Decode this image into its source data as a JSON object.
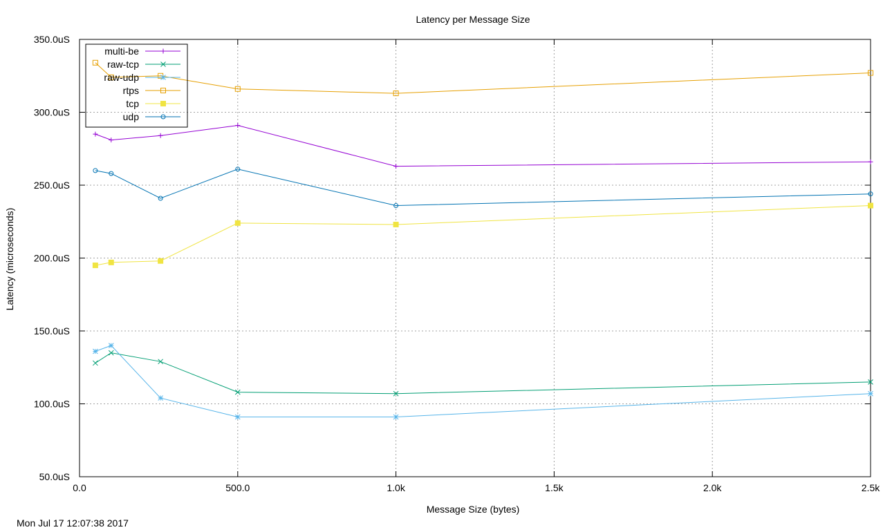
{
  "chart_data": {
    "type": "line",
    "title": "Latency per Message Size",
    "xlabel": "Message Size (bytes)",
    "ylabel": "Latency (microseconds)",
    "xlim": [
      0,
      2500
    ],
    "ylim": [
      50,
      350
    ],
    "grid": true,
    "legend_position": "top-left",
    "x_ticks": [
      {
        "value": 0,
        "label": "0.0"
      },
      {
        "value": 500,
        "label": "500.0"
      },
      {
        "value": 1000,
        "label": "1.0k"
      },
      {
        "value": 1500,
        "label": "1.5k"
      },
      {
        "value": 2000,
        "label": "2.0k"
      },
      {
        "value": 2500,
        "label": "2.5k"
      }
    ],
    "y_ticks": [
      {
        "value": 50,
        "label": "50.0uS"
      },
      {
        "value": 100,
        "label": "100.0uS"
      },
      {
        "value": 150,
        "label": "150.0uS"
      },
      {
        "value": 200,
        "label": "200.0uS"
      },
      {
        "value": 250,
        "label": "250.0uS"
      },
      {
        "value": 300,
        "label": "300.0uS"
      },
      {
        "value": 350,
        "label": "350.0uS"
      }
    ],
    "series": [
      {
        "name": "multi-be",
        "color": "#9400d3",
        "marker": "plus",
        "x": [
          50,
          100,
          256,
          500,
          1000,
          2500
        ],
        "y": [
          285,
          281,
          284,
          291,
          263,
          266
        ]
      },
      {
        "name": "raw-tcp",
        "color": "#009e73",
        "marker": "cross",
        "x": [
          50,
          100,
          256,
          500,
          1000,
          2500
        ],
        "y": [
          128,
          135,
          129,
          108,
          107,
          115
        ]
      },
      {
        "name": "raw-udp",
        "color": "#56b4e9",
        "marker": "star",
        "x": [
          50,
          100,
          256,
          500,
          1000,
          2500
        ],
        "y": [
          136,
          140,
          104,
          91,
          91,
          107
        ]
      },
      {
        "name": "rtps",
        "color": "#e69f00",
        "marker": "open-square",
        "x": [
          50,
          100,
          256,
          500,
          1000,
          2500
        ],
        "y": [
          334,
          324,
          325,
          316,
          313,
          327
        ]
      },
      {
        "name": "tcp",
        "color": "#f0e442",
        "marker": "filled-square",
        "x": [
          50,
          100,
          256,
          500,
          1000,
          2500
        ],
        "y": [
          195,
          197,
          198,
          224,
          223,
          236
        ]
      },
      {
        "name": "udp",
        "color": "#0072b2",
        "marker": "open-circle",
        "x": [
          50,
          100,
          256,
          500,
          1000,
          2500
        ],
        "y": [
          260,
          258,
          241,
          261,
          236,
          244
        ]
      }
    ]
  },
  "footer": {
    "timestamp": "Mon Jul 17 12:07:38 2017"
  }
}
